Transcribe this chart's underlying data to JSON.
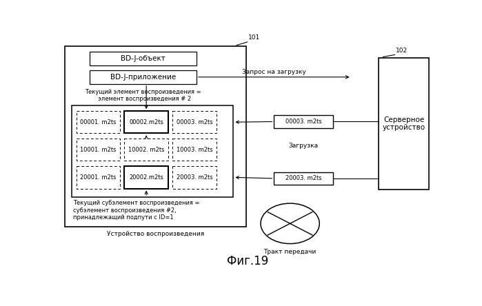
{
  "title": "Фиг.19",
  "label_101": "101",
  "label_102": "102",
  "device_label": "Устройство воспроизведения",
  "server_label": "Серверное\nустройство",
  "transmission_label": "Тракт передачи",
  "box1_text": "BD-J-объект",
  "box2_text": "BD-J-приложение",
  "text_current_item": "Текущий элемент воспроизведения =\n  элемент воспроизведения # 2",
  "text_current_sub": "Текущий субэлемент воспроизведения =\nсубэлемент воспроизведения #2,\nпринадлежащий подпути с ID=1",
  "arrow1_label": "Запрос на загрузку",
  "arrow2_label": "Загрузка",
  "cell_00001": "00001. m2ts",
  "cell_00002": "00002.m2ts",
  "cell_00003": "00003. m2ts",
  "cell_10001": "10001. m2ts",
  "cell_10002": "10002. m2ts",
  "cell_10003": "10003. m2ts",
  "cell_20001": "20001. m2ts",
  "cell_20002": "20002.m2ts",
  "cell_20003": "20003. m2ts",
  "floating_00003": "00003. m2ts",
  "floating_20003": "20003. m2ts",
  "bg_color": "#ffffff",
  "font_size_cells": 6.0,
  "font_size_labels": 6.5,
  "font_size_medium": 7.5,
  "font_size_title": 12
}
